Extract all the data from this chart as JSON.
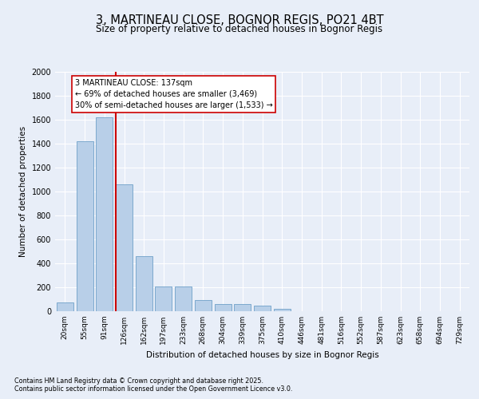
{
  "title_line1": "3, MARTINEAU CLOSE, BOGNOR REGIS, PO21 4BT",
  "title_line2": "Size of property relative to detached houses in Bognor Regis",
  "xlabel": "Distribution of detached houses by size in Bognor Regis",
  "ylabel": "Number of detached properties",
  "categories": [
    "20sqm",
    "55sqm",
    "91sqm",
    "126sqm",
    "162sqm",
    "197sqm",
    "233sqm",
    "268sqm",
    "304sqm",
    "339sqm",
    "375sqm",
    "410sqm",
    "446sqm",
    "481sqm",
    "516sqm",
    "552sqm",
    "587sqm",
    "623sqm",
    "658sqm",
    "694sqm",
    "729sqm"
  ],
  "values": [
    75,
    1420,
    1620,
    1060,
    460,
    210,
    205,
    95,
    60,
    60,
    45,
    20,
    0,
    0,
    0,
    0,
    0,
    0,
    0,
    0,
    0
  ],
  "bar_color": "#b8cfe8",
  "bar_edge_color": "#6fa0c8",
  "vline_color": "#cc0000",
  "vline_x_index": 3,
  "annotation_text": "3 MARTINEAU CLOSE: 137sqm\n← 69% of detached houses are smaller (3,469)\n30% of semi-detached houses are larger (1,533) →",
  "annotation_box_facecolor": "#ffffff",
  "annotation_box_edgecolor": "#cc0000",
  "ylim": [
    0,
    2000
  ],
  "yticks": [
    0,
    200,
    400,
    600,
    800,
    1000,
    1200,
    1400,
    1600,
    1800,
    2000
  ],
  "background_color": "#e8eef8",
  "grid_color": "#ffffff",
  "footer_line1": "Contains HM Land Registry data © Crown copyright and database right 2025.",
  "footer_line2": "Contains public sector information licensed under the Open Government Licence v3.0."
}
